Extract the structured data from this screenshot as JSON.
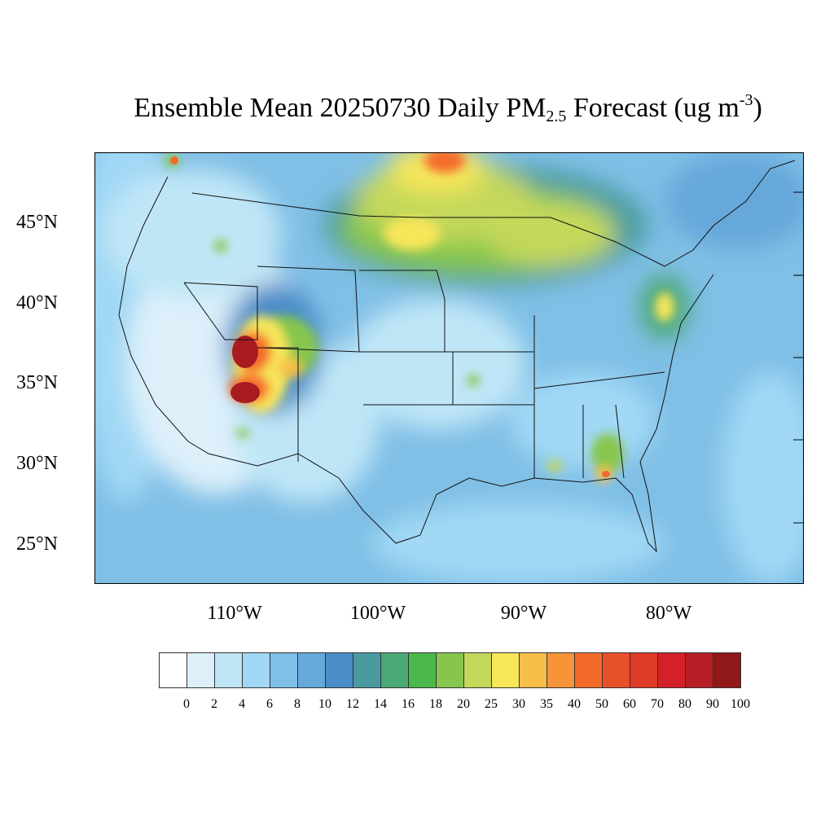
{
  "title": {
    "main": "Ensemble Mean 20250730 Daily PM",
    "sub": "2.5",
    "after": " Forecast (ug m",
    "sup": "-3",
    "close": ")"
  },
  "lat_labels": [
    "45°N",
    "40°N",
    "35°N",
    "30°N",
    "25°N"
  ],
  "lon_labels": [
    "110°W",
    "100°W",
    "90°W",
    "80°W"
  ],
  "colorbar": {
    "levels": [
      "0",
      "2",
      "4",
      "6",
      "8",
      "10",
      "12",
      "14",
      "16",
      "18",
      "20",
      "25",
      "30",
      "35",
      "40",
      "50",
      "60",
      "70",
      "80",
      "90",
      "100"
    ],
    "colors": [
      "#ffffff",
      "#ddf0fa",
      "#bfe6f7",
      "#a0d8f5",
      "#80bfe6",
      "#66a8da",
      "#4a8cc8",
      "#4a9ba0",
      "#4aa874",
      "#4ab84a",
      "#86c64e",
      "#c4d85a",
      "#f7e65a",
      "#f8be4a",
      "#f79438",
      "#f46a2a",
      "#e8502a",
      "#df3b26",
      "#d42028",
      "#b81c24",
      "#901818"
    ]
  }
}
